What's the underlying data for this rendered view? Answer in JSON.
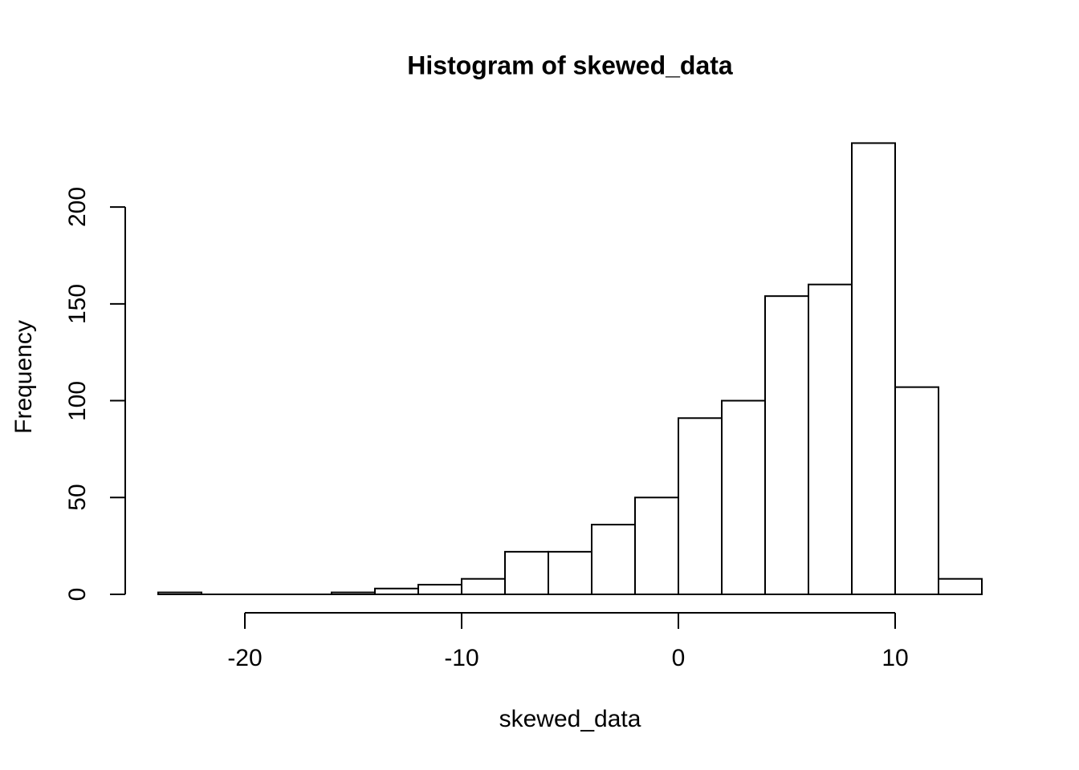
{
  "chart_data": {
    "type": "bar",
    "subtype": "histogram",
    "title": "Histogram of skewed_data",
    "xlabel": "skewed_data",
    "ylabel": "Frequency",
    "bin_width": 2,
    "breaks": [
      -24,
      -22,
      -20,
      -18,
      -16,
      -14,
      -12,
      -10,
      -8,
      -6,
      -4,
      -2,
      0,
      2,
      4,
      6,
      8,
      10,
      12,
      14
    ],
    "counts": [
      1,
      0,
      0,
      0,
      1,
      3,
      5,
      8,
      22,
      22,
      36,
      50,
      91,
      100,
      154,
      160,
      233,
      107,
      8
    ],
    "x_ticks": [
      "-20",
      "-10",
      "0",
      "10"
    ],
    "x_tick_values": [
      -20,
      -10,
      0,
      10
    ],
    "y_ticks": [
      "0",
      "50",
      "100",
      "150",
      "200"
    ],
    "y_tick_values": [
      0,
      50,
      100,
      150,
      200
    ],
    "xlim": [
      -24,
      14
    ],
    "ylim": [
      0,
      233
    ],
    "grid": false,
    "legend": "none",
    "bar_fill": "#ffffff",
    "bar_stroke": "#000000",
    "axis_color": "#000000",
    "background": "#ffffff"
  }
}
